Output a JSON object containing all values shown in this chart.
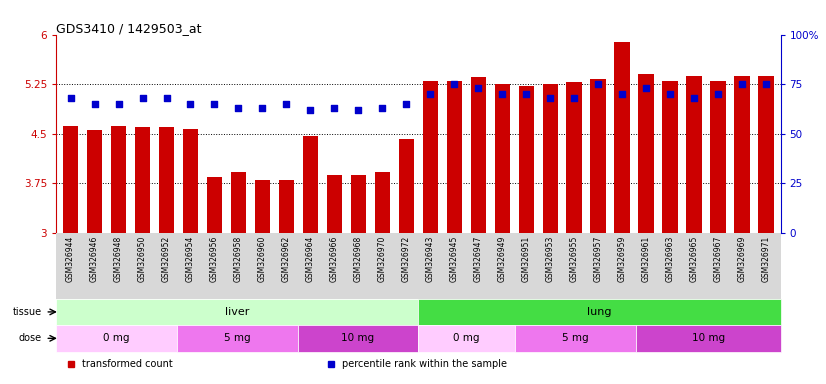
{
  "title": "GDS3410 / 1429503_at",
  "samples": [
    "GSM326944",
    "GSM326946",
    "GSM326948",
    "GSM326950",
    "GSM326952",
    "GSM326954",
    "GSM326956",
    "GSM326958",
    "GSM326960",
    "GSM326962",
    "GSM326964",
    "GSM326966",
    "GSM326968",
    "GSM326970",
    "GSM326972",
    "GSM326943",
    "GSM326945",
    "GSM326947",
    "GSM326949",
    "GSM326951",
    "GSM326953",
    "GSM326955",
    "GSM326957",
    "GSM326959",
    "GSM326961",
    "GSM326963",
    "GSM326965",
    "GSM326967",
    "GSM326969",
    "GSM326971"
  ],
  "transformed_count": [
    4.62,
    4.55,
    4.62,
    4.6,
    4.6,
    4.57,
    3.84,
    3.92,
    3.8,
    3.8,
    4.47,
    3.87,
    3.87,
    3.92,
    4.42,
    5.29,
    5.3,
    5.35,
    5.25,
    5.22,
    5.25,
    5.28,
    5.32,
    5.88,
    5.4,
    5.3,
    5.38,
    5.3,
    5.38,
    5.37
  ],
  "percentile_rank": [
    68,
    65,
    65,
    68,
    68,
    65,
    65,
    63,
    63,
    65,
    62,
    63,
    62,
    63,
    65,
    70,
    75,
    73,
    70,
    70,
    68,
    68,
    75,
    70,
    73,
    70,
    68,
    70,
    75,
    75
  ],
  "ylim_left": [
    3.0,
    6.0
  ],
  "ylim_right": [
    0,
    100
  ],
  "yticks_left": [
    3.0,
    3.75,
    4.5,
    5.25,
    6.0
  ],
  "yticks_right": [
    0,
    25,
    50,
    75,
    100
  ],
  "ytick_labels_left": [
    "3",
    "3.75",
    "4.5",
    "5.25",
    "6"
  ],
  "ytick_labels_right": [
    "0",
    "25",
    "50",
    "75",
    "100%"
  ],
  "hlines": [
    3.75,
    4.5,
    5.25
  ],
  "bar_color": "#cc0000",
  "dot_color": "#0000cc",
  "tissue_groups": [
    {
      "label": "liver",
      "start": 0,
      "end": 15,
      "color": "#ccffcc"
    },
    {
      "label": "lung",
      "start": 15,
      "end": 30,
      "color": "#44dd44"
    }
  ],
  "dose_groups": [
    {
      "label": "0 mg",
      "start": 0,
      "end": 5,
      "color": "#ffccff"
    },
    {
      "label": "5 mg",
      "start": 5,
      "end": 10,
      "color": "#ee77ee"
    },
    {
      "label": "10 mg",
      "start": 10,
      "end": 15,
      "color": "#cc44cc"
    },
    {
      "label": "0 mg",
      "start": 15,
      "end": 19,
      "color": "#ffccff"
    },
    {
      "label": "5 mg",
      "start": 19,
      "end": 24,
      "color": "#ee77ee"
    },
    {
      "label": "10 mg",
      "start": 24,
      "end": 30,
      "color": "#cc44cc"
    }
  ],
  "legend_items": [
    {
      "label": "transformed count",
      "color": "#cc0000"
    },
    {
      "label": "percentile rank within the sample",
      "color": "#0000cc"
    }
  ],
  "plot_bg": "#ffffff",
  "ticklabel_area_color": "#d8d8d8",
  "left_axis_color": "#cc0000",
  "right_axis_color": "#0000cc"
}
